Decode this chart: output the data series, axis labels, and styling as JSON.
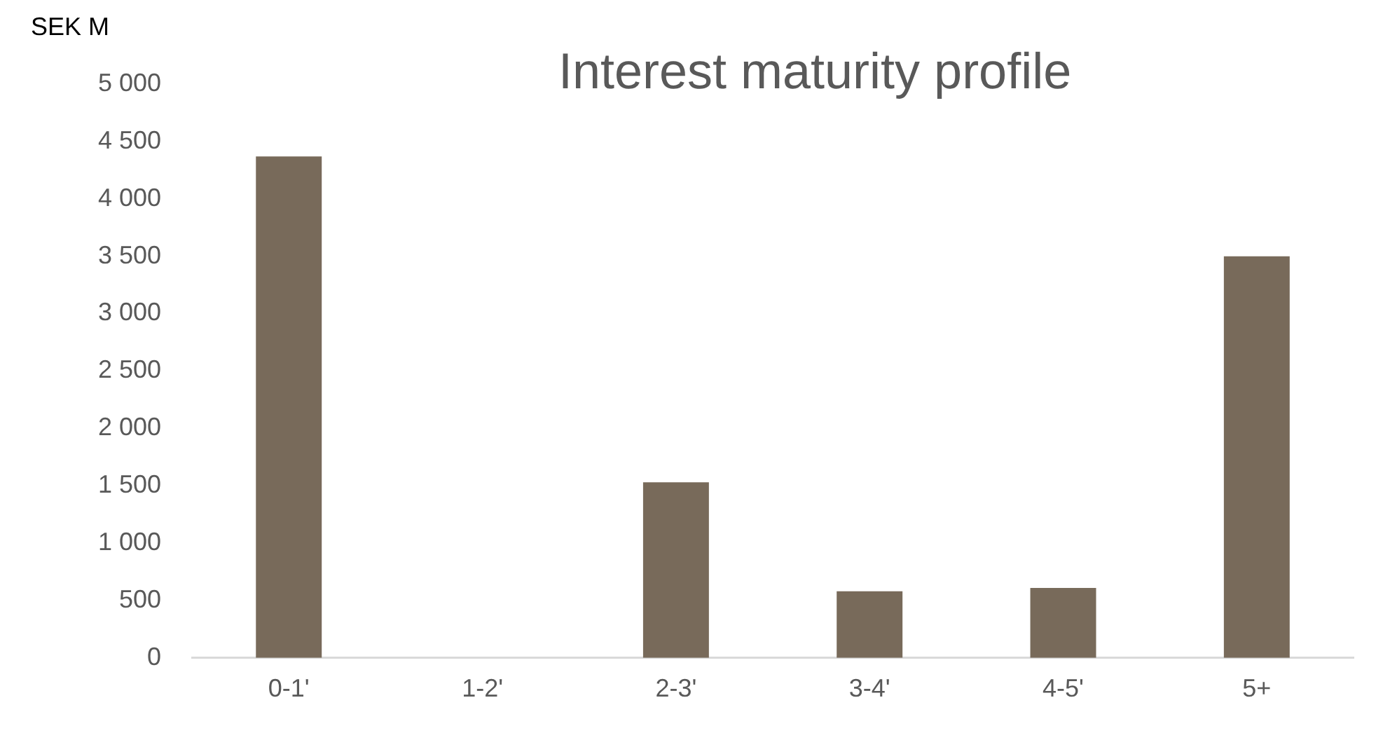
{
  "chart_data": {
    "type": "bar",
    "title": "Interest maturity profile",
    "ylabel": "SEK M",
    "categories": [
      "0-1'",
      "1-2'",
      "2-3'",
      "3-4'",
      "4-5'",
      "5+"
    ],
    "values": [
      4370,
      0,
      1530,
      580,
      610,
      3500
    ],
    "color": "#786a5a",
    "ylim": [
      0,
      5000
    ],
    "yticks": [
      {
        "value": 0,
        "label": "0"
      },
      {
        "value": 500,
        "label": "500"
      },
      {
        "value": 1000,
        "label": "1 000"
      },
      {
        "value": 1500,
        "label": "1 500"
      },
      {
        "value": 2000,
        "label": "2 000"
      },
      {
        "value": 2500,
        "label": "2 500"
      },
      {
        "value": 3000,
        "label": "3 000"
      },
      {
        "value": 3500,
        "label": "3 500"
      },
      {
        "value": 4000,
        "label": "4 000"
      },
      {
        "value": 4500,
        "label": "4 500"
      },
      {
        "value": 5000,
        "label": "5 000"
      }
    ],
    "grid": false,
    "legend": false
  }
}
